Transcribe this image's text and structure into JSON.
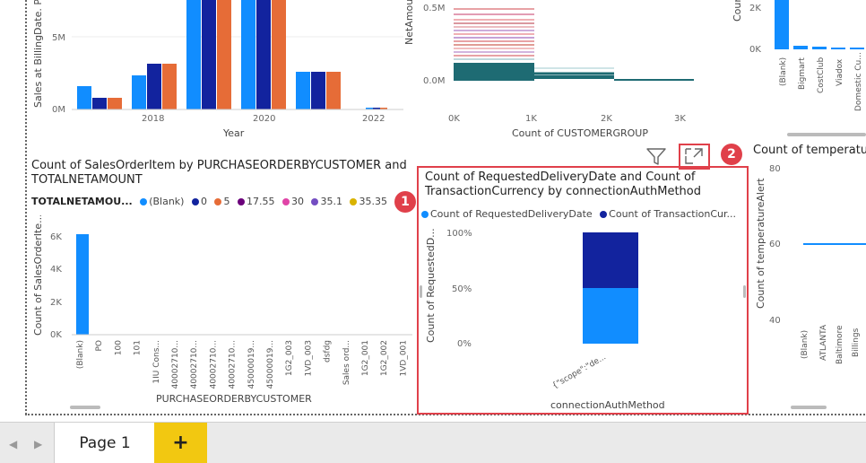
{
  "top_left_chart": {
    "y_axis_label": "Sales at BillingDate. P...",
    "y_ticks": [
      "5M",
      "0M"
    ],
    "x_ticks": [
      "2018",
      "2020",
      "2022"
    ],
    "x_axis_label": "Year",
    "colors": [
      "#118dff",
      "#12239e",
      "#e66c37"
    ]
  },
  "top_middle_chart": {
    "y_axis_label": "NetAmoun...",
    "y_ticks": [
      "0.5M",
      "0.0M"
    ],
    "x_ticks": [
      "0K",
      "1K",
      "2K",
      "3K"
    ],
    "x_axis_label": "Count of CUSTOMERGROUP"
  },
  "top_right_chart": {
    "y_axis_label": "Coun...",
    "y_ticks": [
      "2K",
      "0K"
    ],
    "x_ticks": [
      "(Blank)",
      "Bigmart",
      "CostClub",
      "Viadox",
      "Domestic Cu..."
    ]
  },
  "bottom_left_chart": {
    "title": "Count of SalesOrderItem by PURCHASEORDERBYCUSTOMER and TOTALNETAMOUNT",
    "legend_title": "TOTALNETAMOU...",
    "legend": [
      {
        "label": "(Blank)",
        "color": "#118dff"
      },
      {
        "label": "0",
        "color": "#12239e"
      },
      {
        "label": "5",
        "color": "#e66c37"
      },
      {
        "label": "17.55",
        "color": "#6b007b"
      },
      {
        "label": "30",
        "color": "#e044a7"
      },
      {
        "label": "35.1",
        "color": "#744ec2"
      },
      {
        "label": "35.35",
        "color": "#d9b300"
      }
    ],
    "y_axis_label": "Count of SalesOrderIte...",
    "y_ticks": [
      "6K",
      "4K",
      "2K",
      "0K"
    ],
    "x_ticks": [
      "(Blank)",
      "PO",
      "100",
      "101",
      "1IU Cons...",
      "40002710...",
      "40002710...",
      "40002710...",
      "40002710...",
      "45000019...",
      "45000019...",
      "1G2_003",
      "1VD_003",
      "dsfdg",
      "Sales ord...",
      "1G2_001",
      "1G2_002",
      "1VD_001"
    ],
    "x_axis_label": "PURCHASEORDERBYCUSTOMER"
  },
  "bottom_middle_chart": {
    "title": "Count of RequestedDeliveryDate and Count of TransactionCurrency by connectionAuthMethod",
    "legend": [
      {
        "label": "Count of RequestedDeliveryDate",
        "color": "#118dff"
      },
      {
        "label": "Count of TransactionCur...",
        "color": "#12239e"
      }
    ],
    "y_axis_label": "Count of RequestedD...",
    "y_ticks": [
      "100%",
      "50%",
      "0%"
    ],
    "x_tick": "{\"scope\":\"de...",
    "x_axis_label": "connectionAuthMethod"
  },
  "bottom_right_chart": {
    "title": "Count of temperatu...",
    "y_axis_label": "Count of temperatureAlert",
    "y_ticks": [
      "80",
      "60",
      "40"
    ],
    "x_ticks": [
      "(Blank)",
      "ATLANTA",
      "Baltimore",
      "Billings"
    ]
  },
  "visual_header": {
    "filter_icon": "filter-icon",
    "focus_mode_icon": "focus-mode-icon"
  },
  "callouts": [
    "1",
    "2"
  ],
  "tabs": {
    "prev_icon": "◀",
    "next_icon": "▶",
    "page_label": "Page 1",
    "add_label": "+"
  }
}
